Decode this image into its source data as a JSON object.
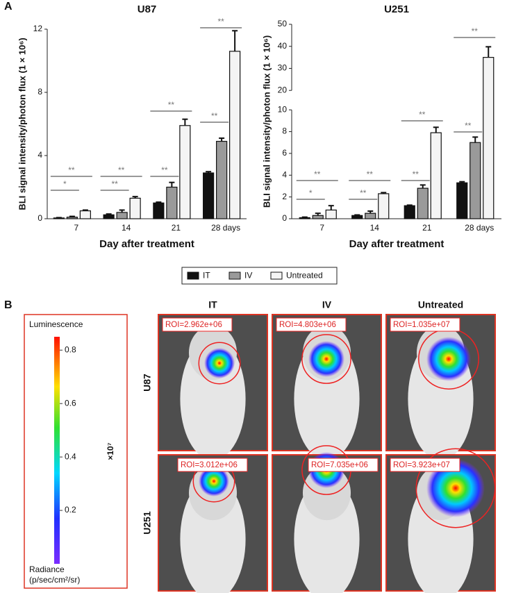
{
  "chart_data": [
    {
      "type": "bar",
      "title": "U87",
      "ylabel": "BLI signal intensity/photon flux (1 × 10⁶)",
      "xlabel": "Day after treatment",
      "categories": [
        "7",
        "14",
        "21",
        "28 days"
      ],
      "series": [
        {
          "name": "IT",
          "color": "#111111",
          "values": [
            0.05,
            0.25,
            1.0,
            2.9
          ],
          "errors": [
            0.02,
            0.05,
            0.05,
            0.08
          ]
        },
        {
          "name": "IV",
          "color": "#9a9a9a",
          "values": [
            0.1,
            0.4,
            2.0,
            4.9
          ],
          "errors": [
            0.05,
            0.15,
            0.3,
            0.2
          ]
        },
        {
          "name": "Untreated",
          "color": "#f4f4f4",
          "values": [
            0.5,
            1.3,
            5.9,
            10.6
          ],
          "errors": [
            0.05,
            0.1,
            0.4,
            1.3
          ]
        }
      ],
      "ylim": [
        0,
        12
      ],
      "yticks": [
        0,
        4,
        8,
        12
      ],
      "legend": "bottom",
      "annotations": [
        "*",
        "**",
        "**",
        "**",
        "**",
        "**",
        "**",
        "**"
      ]
    },
    {
      "type": "bar",
      "title": "U251",
      "ylabel": "BLI signal intensity/photon flux (1 × 10⁶)",
      "xlabel": "Day after treatment",
      "categories": [
        "7",
        "14",
        "21",
        "28 days"
      ],
      "series": [
        {
          "color": "#111111",
          "values": [
            0.1,
            0.3,
            1.2,
            3.3
          ],
          "errors": [
            0.05,
            0.05,
            0.05,
            0.1
          ]
        },
        {
          "color": "#9a9a9a",
          "values": [
            0.3,
            0.5,
            2.8,
            7.0
          ],
          "errors": [
            0.2,
            0.2,
            0.3,
            0.5
          ]
        },
        {
          "color": "#f4f4f4",
          "values": [
            0.8,
            2.3,
            7.9,
            35
          ],
          "errors": [
            0.4,
            0.1,
            0.5,
            4.8
          ]
        }
      ],
      "ylim": [
        0,
        50
      ],
      "yticks": [
        0,
        2,
        4,
        6,
        8,
        10,
        20,
        30,
        40,
        50
      ],
      "axis_break": [
        10,
        20
      ],
      "annotations": [
        "*",
        "**",
        "**",
        "**",
        "**",
        "**",
        "**",
        "**"
      ]
    }
  ],
  "panel_labels": [
    "A",
    "B"
  ],
  "panel_b": {
    "colorbar": {
      "title": "Luminescence",
      "ticks": [
        0.2,
        0.4,
        0.6,
        0.8
      ],
      "lim": [
        0,
        0.85
      ],
      "multiplier": "×10⁷",
      "unit_title": "Radiance",
      "unit": "(p/sec/cm²/sr)"
    },
    "columns": [
      "IT",
      "IV",
      "Untreated"
    ],
    "rows": [
      "U87",
      "U251"
    ],
    "roi": [
      [
        "ROI=2.962e+06",
        "ROI=4.803e+06",
        "ROI=1.035e+07"
      ],
      [
        "ROI=3.012e+06",
        "ROI=7.035e+06",
        "ROI=3.923e+07"
      ]
    ]
  }
}
